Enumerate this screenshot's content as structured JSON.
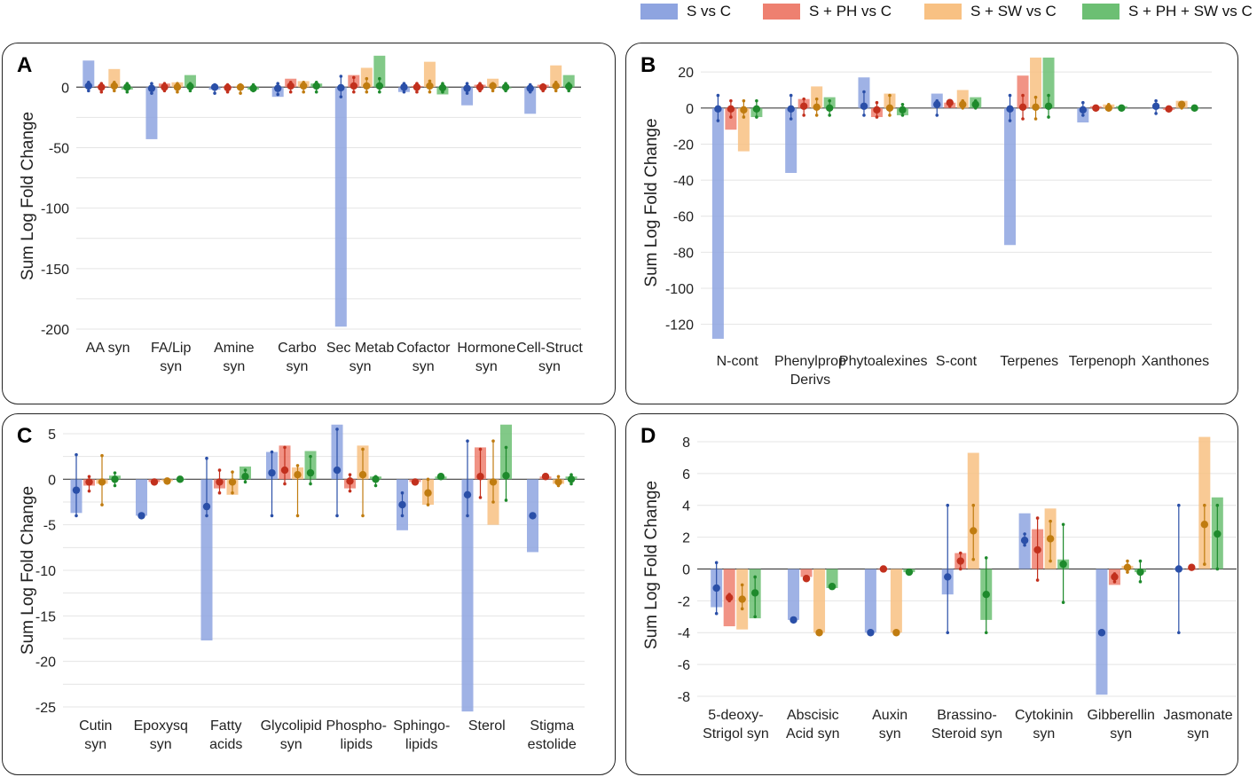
{
  "legend": [
    {
      "label": "S vs C",
      "color": "#8ea4e0"
    },
    {
      "label": "S + PH vs C",
      "color": "#ee8070"
    },
    {
      "label": "S + SW vs C",
      "color": "#f8c183"
    },
    {
      "label": "S + PH + SW vs C",
      "color": "#6cbf73"
    }
  ],
  "series_colors": {
    "bars": [
      "#8ea4e0",
      "#ee8070",
      "#f8c183",
      "#6cbf73"
    ],
    "points": [
      "#2a4fa8",
      "#c2301d",
      "#c07c10",
      "#1e8a2c"
    ]
  },
  "chart_data": [
    {
      "panel": "A",
      "type": "bar",
      "ylabel": "Sum Log Fold Change",
      "ylim": [
        -200,
        20
      ],
      "yticks": [
        0,
        -50,
        -100,
        -150,
        -200
      ],
      "grid_step": 25,
      "categories": [
        [
          "AA syn"
        ],
        [
          "FA/Lip",
          "syn"
        ],
        [
          "Amine",
          "syn"
        ],
        [
          "Carbo",
          "syn"
        ],
        [
          "Sec Metab",
          "syn"
        ],
        [
          "Cofactor",
          "syn"
        ],
        [
          "Hormone",
          "syn"
        ],
        [
          "Cell-Struct",
          "syn"
        ]
      ],
      "series": [
        {
          "name": "S vs C",
          "values": [
            22,
            -43,
            -2,
            -8,
            -198,
            -4,
            -15,
            -22
          ],
          "means": [
            1,
            -1,
            0,
            -1,
            -0.5,
            0,
            -1,
            -1
          ],
          "err": [
            [
              -3,
              4
            ],
            [
              -5,
              3
            ],
            [
              -5,
              2
            ],
            [
              -6,
              3
            ],
            [
              -8,
              9
            ],
            [
              -4,
              3
            ],
            [
              -5,
              3
            ],
            [
              -4,
              2
            ]
          ]
        },
        {
          "name": "S + PH vs C",
          "values": [
            1,
            3,
            0,
            7,
            10,
            1,
            2,
            2
          ],
          "means": [
            0,
            0,
            -0.5,
            1,
            1,
            0,
            0,
            0
          ],
          "err": [
            [
              -4,
              3
            ],
            [
              -3,
              3
            ],
            [
              -4,
              2
            ],
            [
              -4,
              4
            ],
            [
              -4,
              8
            ],
            [
              -4,
              3
            ],
            [
              -3,
              3
            ],
            [
              -3,
              2
            ]
          ]
        },
        {
          "name": "S + SW vs C",
          "values": [
            15,
            4,
            1,
            5,
            16,
            21,
            7,
            18
          ],
          "means": [
            1,
            0,
            0,
            1,
            1,
            1,
            1,
            1
          ],
          "err": [
            [
              -3,
              4
            ],
            [
              -4,
              3
            ],
            [
              -5,
              2
            ],
            [
              -4,
              4
            ],
            [
              -4,
              7
            ],
            [
              -4,
              5
            ],
            [
              -3,
              3
            ],
            [
              -3,
              4
            ]
          ]
        },
        {
          "name": "S + PH + SW vs C",
          "values": [
            -2,
            10,
            -2,
            3,
            26,
            -6,
            -1,
            10
          ],
          "means": [
            0,
            0.5,
            -1,
            1,
            1,
            -0.5,
            0,
            0.5
          ],
          "err": [
            [
              -4,
              3
            ],
            [
              -3,
              3
            ],
            [
              -3,
              2
            ],
            [
              -4,
              4
            ],
            [
              -4,
              7
            ],
            [
              -4,
              3
            ],
            [
              -3,
              3
            ],
            [
              -3,
              3
            ]
          ]
        }
      ]
    },
    {
      "panel": "B",
      "type": "bar",
      "ylabel": "Sum Log Fold Change",
      "ylim": [
        -130,
        25
      ],
      "yticks": [
        20,
        0,
        -20,
        -40,
        -60,
        -80,
        -100,
        -120
      ],
      "grid_step": 20,
      "categories": [
        [
          "N-cont"
        ],
        [
          "Phenylprop",
          "Derivs"
        ],
        [
          "Phytoalexines"
        ],
        [
          "S-cont"
        ],
        [
          "Terpenes"
        ],
        [
          "Terpenoph"
        ],
        [
          "Xanthones"
        ]
      ],
      "series": [
        {
          "name": "S vs C",
          "values": [
            -128,
            -36,
            17,
            8,
            -76,
            -8,
            0
          ],
          "means": [
            -0.5,
            -0.5,
            1,
            2,
            -0.5,
            -1,
            1
          ],
          "err": [
            [
              -7,
              7
            ],
            [
              -6,
              7
            ],
            [
              -4,
              9
            ],
            [
              -4,
              4
            ],
            [
              -7,
              7
            ],
            [
              -4,
              3
            ],
            [
              -3,
              4
            ]
          ]
        },
        {
          "name": "S + PH vs C",
          "values": [
            -12,
            5,
            -5,
            3,
            18,
            1,
            -1
          ],
          "means": [
            -0.5,
            1,
            -1,
            3,
            0.5,
            0,
            -0.5
          ],
          "err": [
            [
              -5,
              4
            ],
            [
              -4,
              5
            ],
            [
              -5,
              3
            ],
            [
              1,
              4
            ],
            [
              -6,
              7
            ],
            [
              -1,
              1
            ],
            [
              -1,
              0
            ]
          ]
        },
        {
          "name": "S + SW vs C",
          "values": [
            -24,
            12,
            8,
            10,
            28,
            2,
            4
          ],
          "means": [
            -1,
            0.5,
            0,
            2,
            0.5,
            0,
            2
          ],
          "err": [
            [
              -5,
              4
            ],
            [
              -4,
              5
            ],
            [
              -4,
              7
            ],
            [
              0,
              4
            ],
            [
              -6,
              6
            ],
            [
              -1,
              2
            ],
            [
              0,
              3
            ]
          ]
        },
        {
          "name": "S + PH + SW vs C",
          "values": [
            -5,
            6,
            -4,
            6,
            28,
            1,
            0
          ],
          "means": [
            -0.5,
            0,
            -1,
            2,
            1,
            0,
            0
          ],
          "err": [
            [
              -5,
              4
            ],
            [
              -4,
              4
            ],
            [
              -4,
              2
            ],
            [
              0,
              4
            ],
            [
              -5,
              7
            ],
            [
              -1,
              1
            ],
            [
              0,
              0
            ]
          ]
        }
      ]
    },
    {
      "panel": "C",
      "type": "bar",
      "ylabel": "Sum Log Fold Change",
      "ylim": [
        -25,
        5
      ],
      "yticks": [
        5,
        0,
        -5,
        -10,
        -15,
        -20,
        -25
      ],
      "grid_step": 2.5,
      "categories": [
        [
          "Cutin",
          "syn"
        ],
        [
          "Epoxysq",
          "syn"
        ],
        [
          "Fatty",
          "acids"
        ],
        [
          "Glycolipid",
          "syn"
        ],
        [
          "Phospho-",
          "lipids"
        ],
        [
          "Sphingo-",
          "lipids"
        ],
        [
          "Sterol"
        ],
        [
          "Stigma",
          "estolide"
        ]
      ],
      "series": [
        {
          "name": "S vs C",
          "values": [
            -3.7,
            -4,
            -17.7,
            3,
            6,
            -5.6,
            -25.5,
            -8
          ],
          "means": [
            -1.2,
            -4,
            -3,
            0.7,
            1,
            -2.8,
            -1.7,
            -4
          ],
          "err": [
            [
              -4,
              2.7
            ],
            [
              -4,
              -4
            ],
            [
              -4,
              2.3
            ],
            [
              -4,
              3
            ],
            [
              -4,
              5.5
            ],
            [
              -4,
              -1.5
            ],
            [
              -4,
              4.2
            ],
            [
              -4,
              -4
            ]
          ]
        },
        {
          "name": "S + PH vs C",
          "values": [
            -0.7,
            -0.3,
            -1,
            3.7,
            -1,
            -0.3,
            3.5,
            0.3
          ],
          "means": [
            -0.3,
            -0.3,
            -0.3,
            1,
            -0.2,
            -0.3,
            0.3,
            0.3
          ],
          "err": [
            [
              -1.3,
              0.3
            ],
            [
              -0.3,
              -0.3
            ],
            [
              -1.5,
              1
            ],
            [
              -0.5,
              3.5
            ],
            [
              -1.3,
              0.5
            ],
            [
              -0.3,
              -0.3
            ],
            [
              -2,
              3.3
            ],
            [
              0.3,
              0.3
            ]
          ]
        },
        {
          "name": "S + SW vs C",
          "values": [
            -0.5,
            -0.2,
            -1.7,
            1.3,
            3.7,
            -2.8,
            -5,
            -0.5
          ],
          "means": [
            -0.3,
            -0.2,
            -0.3,
            0.5,
            0.5,
            -1.5,
            -0.3,
            -0.3
          ],
          "err": [
            [
              -2.8,
              2.6
            ],
            [
              -0.2,
              -0.2
            ],
            [
              -1.5,
              0.8
            ],
            [
              -4,
              1.5
            ],
            [
              -4,
              3.3
            ],
            [
              -2.8,
              0
            ],
            [
              -2.5,
              4.2
            ],
            [
              -0.7,
              0.3
            ]
          ]
        },
        {
          "name": "S + PH + SW vs C",
          "values": [
            0.4,
            0,
            1.4,
            3.1,
            0.3,
            0.3,
            6,
            0.3
          ],
          "means": [
            0,
            0,
            0.3,
            0.7,
            0,
            0.3,
            0.4,
            0
          ],
          "err": [
            [
              -0.7,
              0.7
            ],
            [
              0,
              0
            ],
            [
              -0.3,
              1
            ],
            [
              -0.5,
              2.5
            ],
            [
              -0.7,
              0.3
            ],
            [
              0.3,
              0.3
            ],
            [
              -2.3,
              3.5
            ],
            [
              -0.5,
              0.5
            ]
          ]
        }
      ]
    },
    {
      "panel": "D",
      "type": "bar",
      "ylabel": "Sum Log Fold Change",
      "ylim": [
        -8,
        8.5
      ],
      "yticks": [
        8,
        6,
        4,
        2,
        0,
        -2,
        -4,
        -6,
        -8
      ],
      "grid_step": 2,
      "categories": [
        [
          "5-deoxy-",
          "Strigol syn"
        ],
        [
          "Abscisic",
          "Acid syn"
        ],
        [
          "Auxin",
          "syn"
        ],
        [
          "Brassino-",
          "Steroid syn"
        ],
        [
          "Cytokinin",
          "syn"
        ],
        [
          "Gibberellin",
          "syn"
        ],
        [
          "Jasmonate",
          "syn"
        ]
      ],
      "series": [
        {
          "name": "S vs C",
          "values": [
            -2.4,
            -3.2,
            -4,
            -1.6,
            3.5,
            -7.9,
            0
          ],
          "means": [
            -1.2,
            -3.2,
            -4,
            -0.5,
            1.8,
            -4,
            0
          ],
          "err": [
            [
              -2.8,
              0.4
            ],
            [
              -3.2,
              -3.2
            ],
            [
              -4,
              -4
            ],
            [
              -4,
              4
            ],
            [
              1.5,
              2.2
            ],
            [
              -4,
              -4
            ],
            [
              -4,
              4
            ]
          ]
        },
        {
          "name": "S + PH vs C",
          "values": [
            -3.6,
            -0.5,
            0,
            1,
            2.5,
            -1,
            0
          ],
          "means": [
            -1.8,
            -0.6,
            0,
            0.5,
            1.2,
            -0.5,
            0.1
          ],
          "err": [
            [
              -2,
              -1.6
            ],
            [
              -0.6,
              -0.6
            ],
            [
              0,
              0
            ],
            [
              0,
              1
            ],
            [
              -0.7,
              3.2
            ],
            [
              -0.8,
              -0.3
            ],
            [
              0.1,
              0.1
            ]
          ]
        },
        {
          "name": "S + SW vs C",
          "values": [
            -3.8,
            -4,
            -4,
            7.3,
            3.8,
            0.2,
            8.3
          ],
          "means": [
            -1.9,
            -4,
            -4,
            2.4,
            1.9,
            0.1,
            2.8
          ],
          "err": [
            [
              -2.5,
              -1
            ],
            [
              -4,
              -4
            ],
            [
              -4,
              -4
            ],
            [
              0.6,
              4
            ],
            [
              0.5,
              3
            ],
            [
              -0.2,
              0.5
            ],
            [
              0.3,
              4
            ]
          ]
        },
        {
          "name": "S + PH + SW vs C",
          "values": [
            -3.1,
            -1.2,
            -0.2,
            -3.2,
            0.6,
            -0.2,
            4.5
          ],
          "means": [
            -1.5,
            -1.1,
            -0.2,
            -1.6,
            0.3,
            -0.2,
            2.2
          ],
          "err": [
            [
              -3,
              -0.5
            ],
            [
              -1.1,
              -1.1
            ],
            [
              -0.2,
              -0.2
            ],
            [
              -4,
              0.7
            ],
            [
              -2.1,
              2.8
            ],
            [
              -0.8,
              0.5
            ],
            [
              0,
              4
            ]
          ]
        }
      ]
    }
  ]
}
